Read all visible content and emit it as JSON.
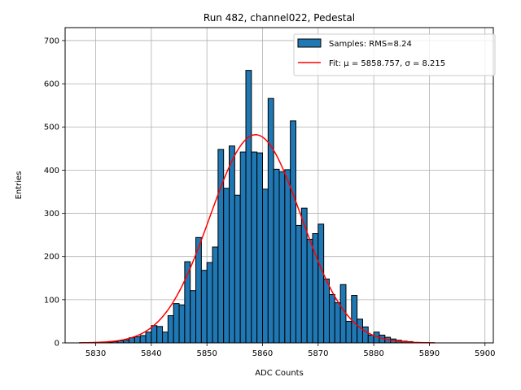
{
  "chart_data": {
    "type": "bar",
    "title": "Run 482, channel022, Pedestal",
    "xlabel": "ADC Counts",
    "ylabel": "Entries",
    "xlim": [
      5824.5,
      5901.5
    ],
    "ylim": [
      0,
      730
    ],
    "xticks": [
      5830,
      5840,
      5850,
      5860,
      5870,
      5880,
      5890,
      5900
    ],
    "yticks": [
      0,
      100,
      200,
      300,
      400,
      500,
      600,
      700
    ],
    "grid": true,
    "legend_position": "top-right",
    "legend": {
      "histogram": "Samples: RMS=8.24",
      "fit": "Fit: μ = 5858.757, σ = 8.215"
    },
    "histogram": {
      "name": "Samples: RMS=8.24",
      "color": "#1f77b4",
      "edge_color": "#000000",
      "bin_width": 1,
      "bin_start": [
        5830,
        5831,
        5832,
        5833,
        5834,
        5835,
        5836,
        5837,
        5838,
        5839,
        5840,
        5841,
        5842,
        5843,
        5844,
        5845,
        5846,
        5847,
        5848,
        5849,
        5850,
        5851,
        5852,
        5853,
        5854,
        5855,
        5856,
        5857,
        5858,
        5859,
        5860,
        5861,
        5862,
        5863,
        5864,
        5865,
        5866,
        5867,
        5868,
        5869,
        5870,
        5871,
        5872,
        5873,
        5874,
        5875,
        5876,
        5877,
        5878,
        5879,
        5880,
        5881,
        5882,
        5883,
        5884,
        5885,
        5886,
        5887
      ],
      "counts": [
        1,
        1,
        2,
        3,
        5,
        7,
        12,
        14,
        17,
        25,
        40,
        38,
        25,
        63,
        91,
        88,
        188,
        121,
        244,
        168,
        186,
        222,
        448,
        358,
        456,
        342,
        442,
        631,
        442,
        440,
        356,
        566,
        402,
        396,
        401,
        514,
        272,
        312,
        240,
        253,
        275,
        148,
        112,
        93,
        135,
        50,
        110,
        55,
        37,
        18,
        25,
        18,
        13,
        9,
        6,
        4,
        3,
        1
      ]
    },
    "fit": {
      "name": "Fit: μ = 5858.757, σ = 8.215",
      "color": "#ff0000",
      "mu": 5858.757,
      "sigma": 8.215,
      "amplitude": 482,
      "x_range": [
        5827,
        5891
      ]
    }
  }
}
